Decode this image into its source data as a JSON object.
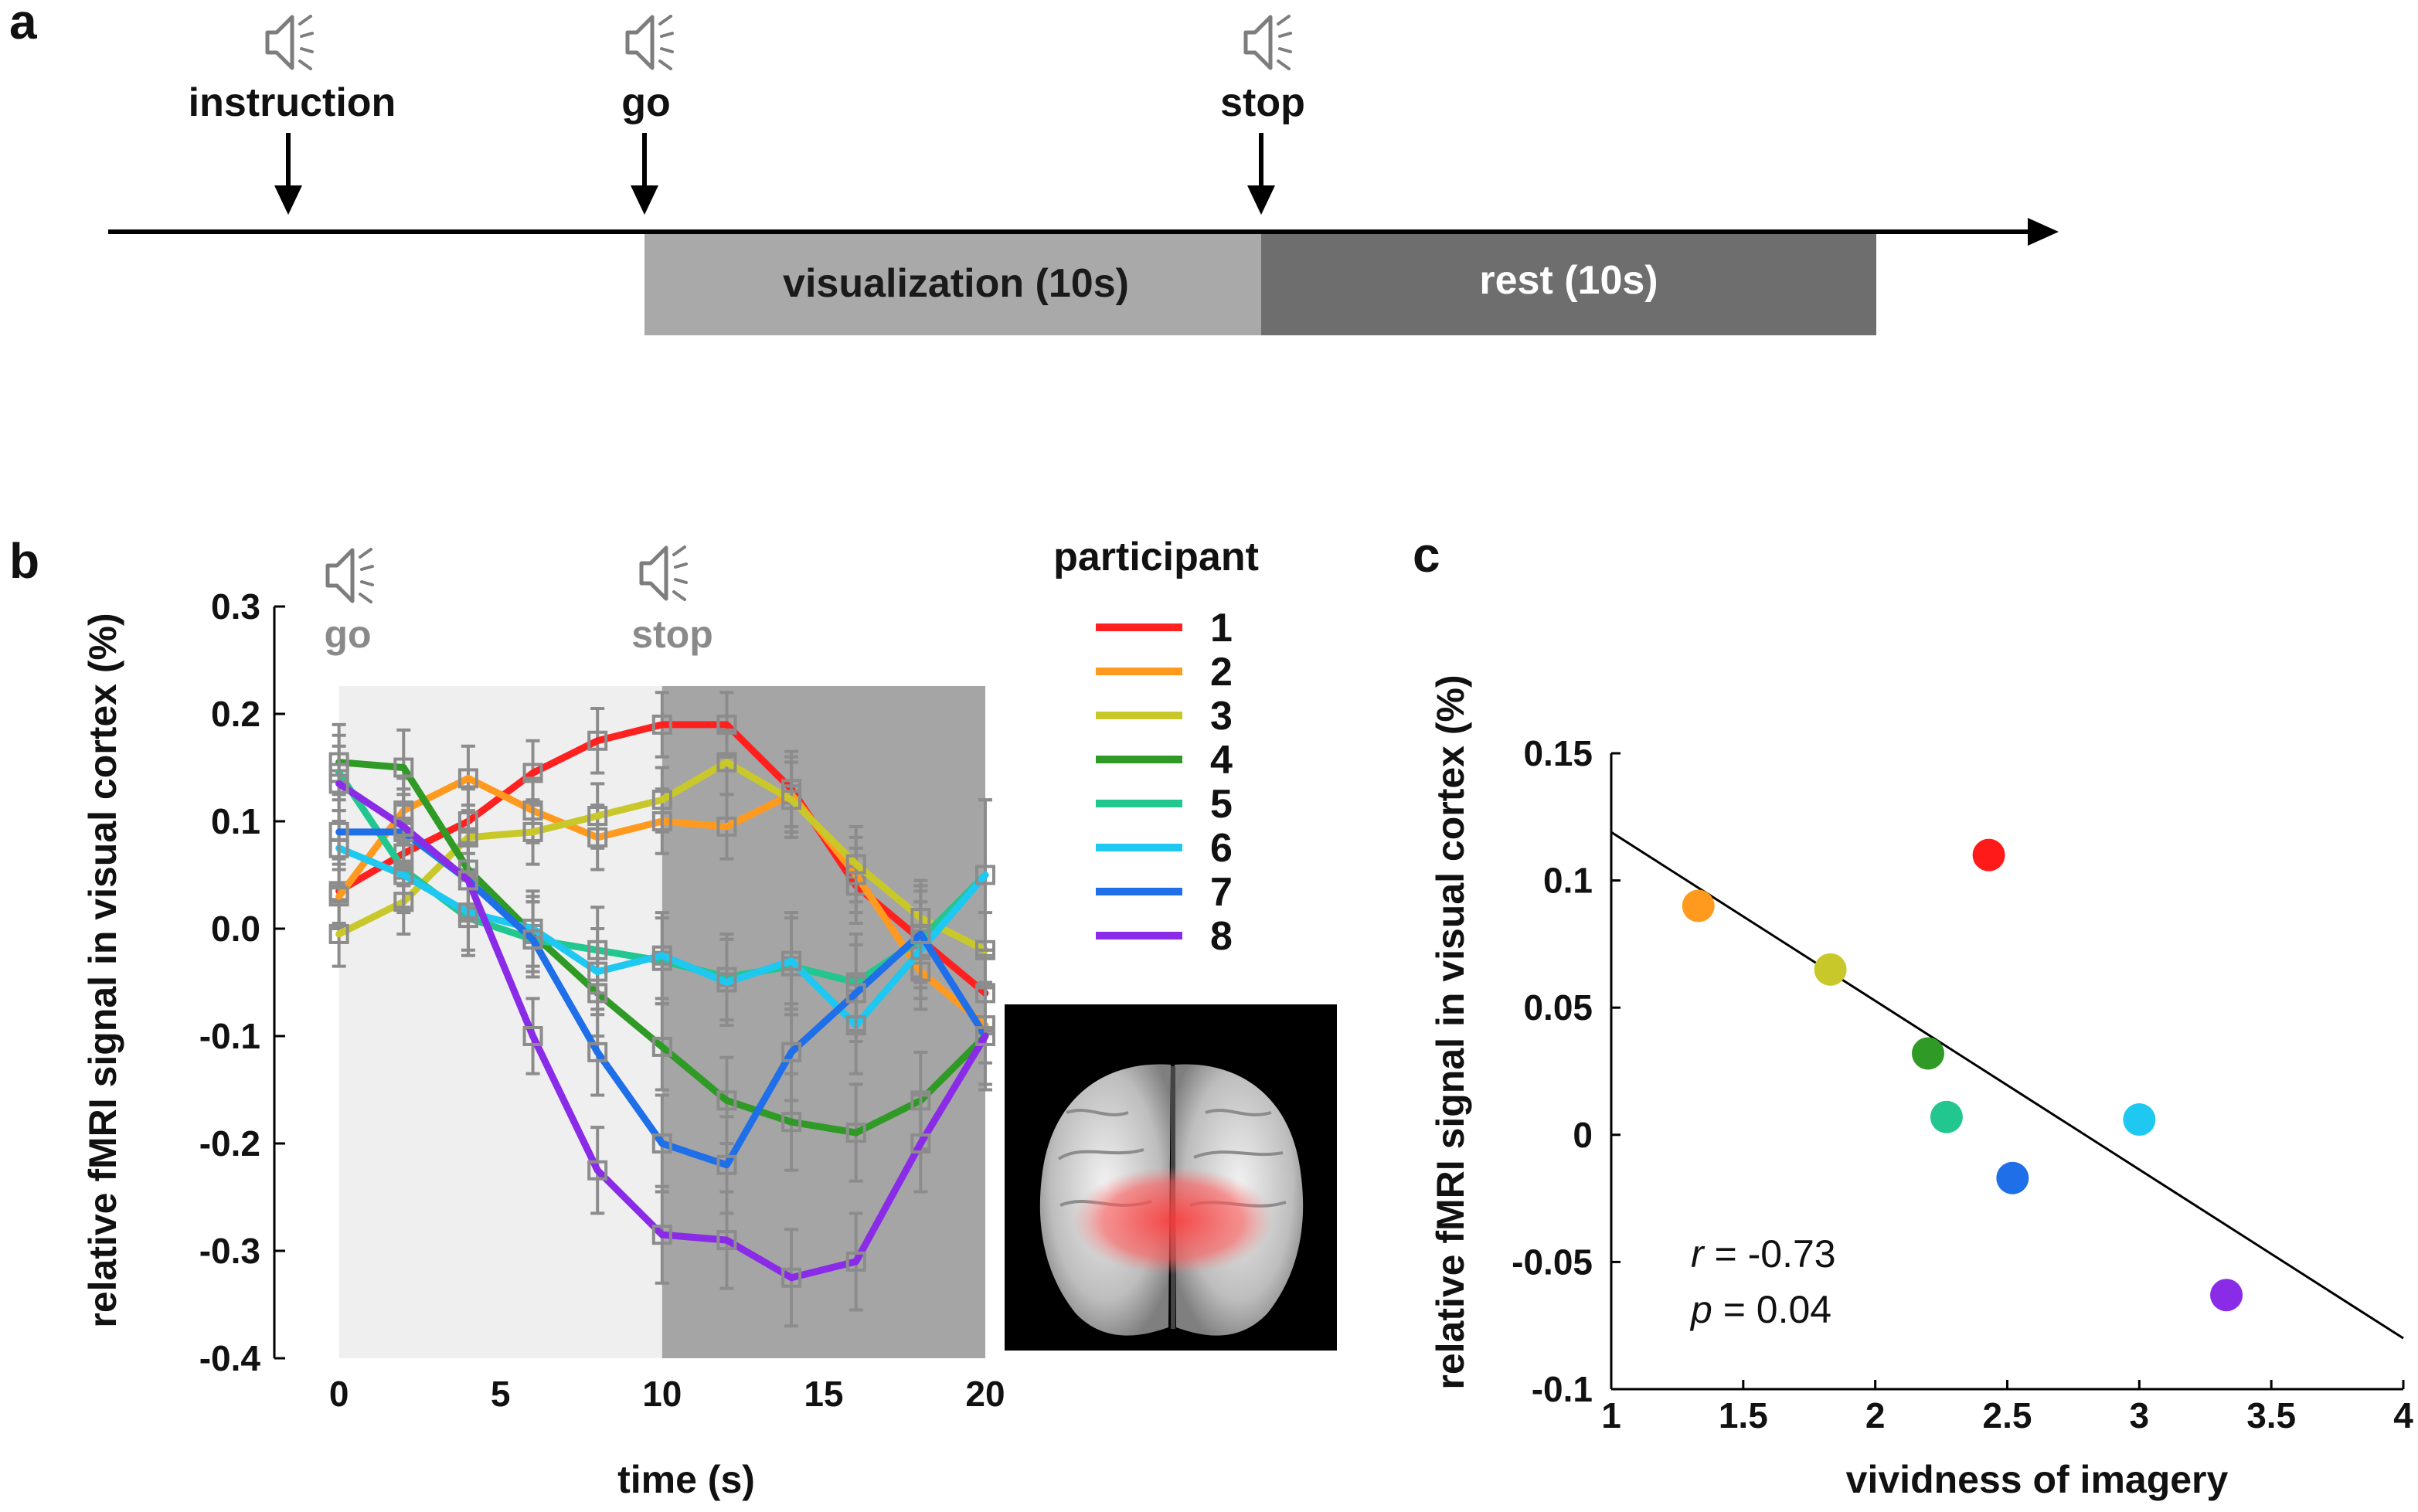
{
  "panel_a": {
    "letter": "a",
    "events": [
      {
        "label": "instruction"
      },
      {
        "label": "go"
      },
      {
        "label": "stop"
      }
    ],
    "phases": [
      {
        "label": "visualization (10s)",
        "color": "#a9a9a9"
      },
      {
        "label": "rest (10s)",
        "color": "#6e6e6e"
      }
    ],
    "icon": "speaker-icon"
  },
  "panel_b": {
    "letter": "b",
    "go_label": "go",
    "stop_label": "stop",
    "legend_title": "participant",
    "legend_labels": [
      "1",
      "2",
      "3",
      "4",
      "5",
      "6",
      "7",
      "8"
    ],
    "brain_image": "brain-rendering-visual-cortex"
  },
  "panel_c": {
    "letter": "c",
    "stat_r_symbol": "r",
    "stat_r_value": " = -0.73",
    "stat_p_symbol": "p",
    "stat_p_value": " = 0.04"
  },
  "chart_data": [
    {
      "type": "line",
      "xlabel": "time (s)",
      "ylabel": "relative fMRI signal in visual cortex (%)",
      "xlim": [
        -2,
        20
      ],
      "ylim": [
        -0.4,
        0.3
      ],
      "xticks": [
        "0",
        "5",
        "10",
        "15",
        "20"
      ],
      "yticks": [
        "0.3",
        "0.2",
        "0.1",
        "0.0",
        "-0.1",
        "-0.2",
        "-0.3",
        "-0.4"
      ],
      "shaded_regions": [
        {
          "from": 0,
          "to": 10,
          "color": "#efefef"
        },
        {
          "from": 10,
          "to": 20,
          "color": "#a5a5a5"
        }
      ],
      "x": [
        0,
        2,
        4,
        6,
        8,
        10,
        12,
        14,
        16,
        18,
        20
      ],
      "series": [
        {
          "name": "1",
          "color": "#ff2020",
          "values": [
            0.035,
            0.07,
            0.1,
            0.145,
            0.175,
            0.19,
            0.19,
            0.13,
            0.04,
            -0.01,
            -0.06
          ],
          "errors": [
            0.03,
            0.03,
            0.03,
            0.03,
            0.03,
            0.03,
            0.03,
            0.035,
            0.035,
            0.035,
            0.035
          ]
        },
        {
          "name": "2",
          "color": "#ff9a1f",
          "values": [
            0.03,
            0.11,
            0.14,
            0.11,
            0.085,
            0.1,
            0.095,
            0.125,
            0.05,
            -0.04,
            -0.09
          ],
          "errors": [
            0.03,
            0.03,
            0.03,
            0.03,
            0.03,
            0.03,
            0.03,
            0.035,
            0.035,
            0.035,
            0.035
          ]
        },
        {
          "name": "3",
          "color": "#c9c82b",
          "values": [
            -0.005,
            0.025,
            0.085,
            0.09,
            0.105,
            0.12,
            0.155,
            0.12,
            0.06,
            0.01,
            -0.02
          ],
          "errors": [
            0.03,
            0.03,
            0.03,
            0.03,
            0.03,
            0.03,
            0.03,
            0.035,
            0.035,
            0.035,
            0.035
          ]
        },
        {
          "name": "4",
          "color": "#2f9a26",
          "values": [
            0.155,
            0.15,
            0.055,
            -0.005,
            -0.06,
            -0.11,
            -0.16,
            -0.18,
            -0.19,
            -0.16,
            -0.1
          ],
          "errors": [
            0.035,
            0.035,
            0.035,
            0.035,
            0.04,
            0.04,
            0.04,
            0.045,
            0.045,
            0.045,
            0.045
          ]
        },
        {
          "name": "5",
          "color": "#22c78f",
          "values": [
            0.145,
            0.055,
            0.01,
            -0.01,
            -0.02,
            -0.03,
            -0.045,
            -0.035,
            -0.05,
            -0.01,
            0.05
          ],
          "errors": [
            0.035,
            0.035,
            0.035,
            0.035,
            0.04,
            0.04,
            0.04,
            0.045,
            0.045,
            0.045,
            0.07
          ]
        },
        {
          "name": "6",
          "color": "#1ec8f0",
          "values": [
            0.075,
            0.05,
            0.015,
            0.0,
            -0.04,
            -0.025,
            -0.05,
            -0.03,
            -0.09,
            -0.02,
            0.05
          ],
          "errors": [
            0.035,
            0.035,
            0.035,
            0.035,
            0.04,
            0.04,
            0.04,
            0.045,
            0.045,
            0.045,
            0.07
          ]
        },
        {
          "name": "7",
          "color": "#1f6fe8",
          "values": [
            0.09,
            0.09,
            0.045,
            -0.01,
            -0.115,
            -0.2,
            -0.22,
            -0.115,
            -0.06,
            -0.005,
            -0.1
          ],
          "errors": [
            0.035,
            0.035,
            0.035,
            0.035,
            0.04,
            0.045,
            0.045,
            0.045,
            0.045,
            0.045,
            0.05
          ]
        },
        {
          "name": "8",
          "color": "#8a2be8",
          "values": [
            0.135,
            0.095,
            0.045,
            -0.1,
            -0.225,
            -0.285,
            -0.29,
            -0.325,
            -0.31,
            -0.2,
            -0.1
          ],
          "errors": [
            0.035,
            0.035,
            0.035,
            0.035,
            0.04,
            0.045,
            0.045,
            0.045,
            0.045,
            0.045,
            0.05
          ]
        }
      ]
    },
    {
      "type": "scatter",
      "xlabel": "vividness of imagery",
      "ylabel": "relative fMRI signal in visual cortex (%)",
      "xlim": [
        1,
        4
      ],
      "ylim": [
        -0.1,
        0.15
      ],
      "xticks": [
        "1",
        "1.5",
        "2",
        "2.5",
        "3",
        "3.5",
        "4"
      ],
      "yticks": [
        "0.15",
        "0.1",
        "0.05",
        "0",
        "-0.05",
        "-0.1"
      ],
      "points": [
        {
          "x": 2.43,
          "y": 0.11,
          "color": "#ff1a1a"
        },
        {
          "x": 1.33,
          "y": 0.09,
          "color": "#ff9a1f"
        },
        {
          "x": 1.83,
          "y": 0.065,
          "color": "#c9c82b"
        },
        {
          "x": 2.2,
          "y": 0.032,
          "color": "#2f9a26"
        },
        {
          "x": 2.27,
          "y": 0.007,
          "color": "#22c78f"
        },
        {
          "x": 3.0,
          "y": 0.006,
          "color": "#1ec8f0"
        },
        {
          "x": 2.52,
          "y": -0.017,
          "color": "#1f6fe8"
        },
        {
          "x": 3.33,
          "y": -0.063,
          "color": "#8a2be8"
        }
      ],
      "fit_line": {
        "x": [
          1,
          4
        ],
        "y": [
          0.119,
          -0.08
        ]
      }
    }
  ]
}
